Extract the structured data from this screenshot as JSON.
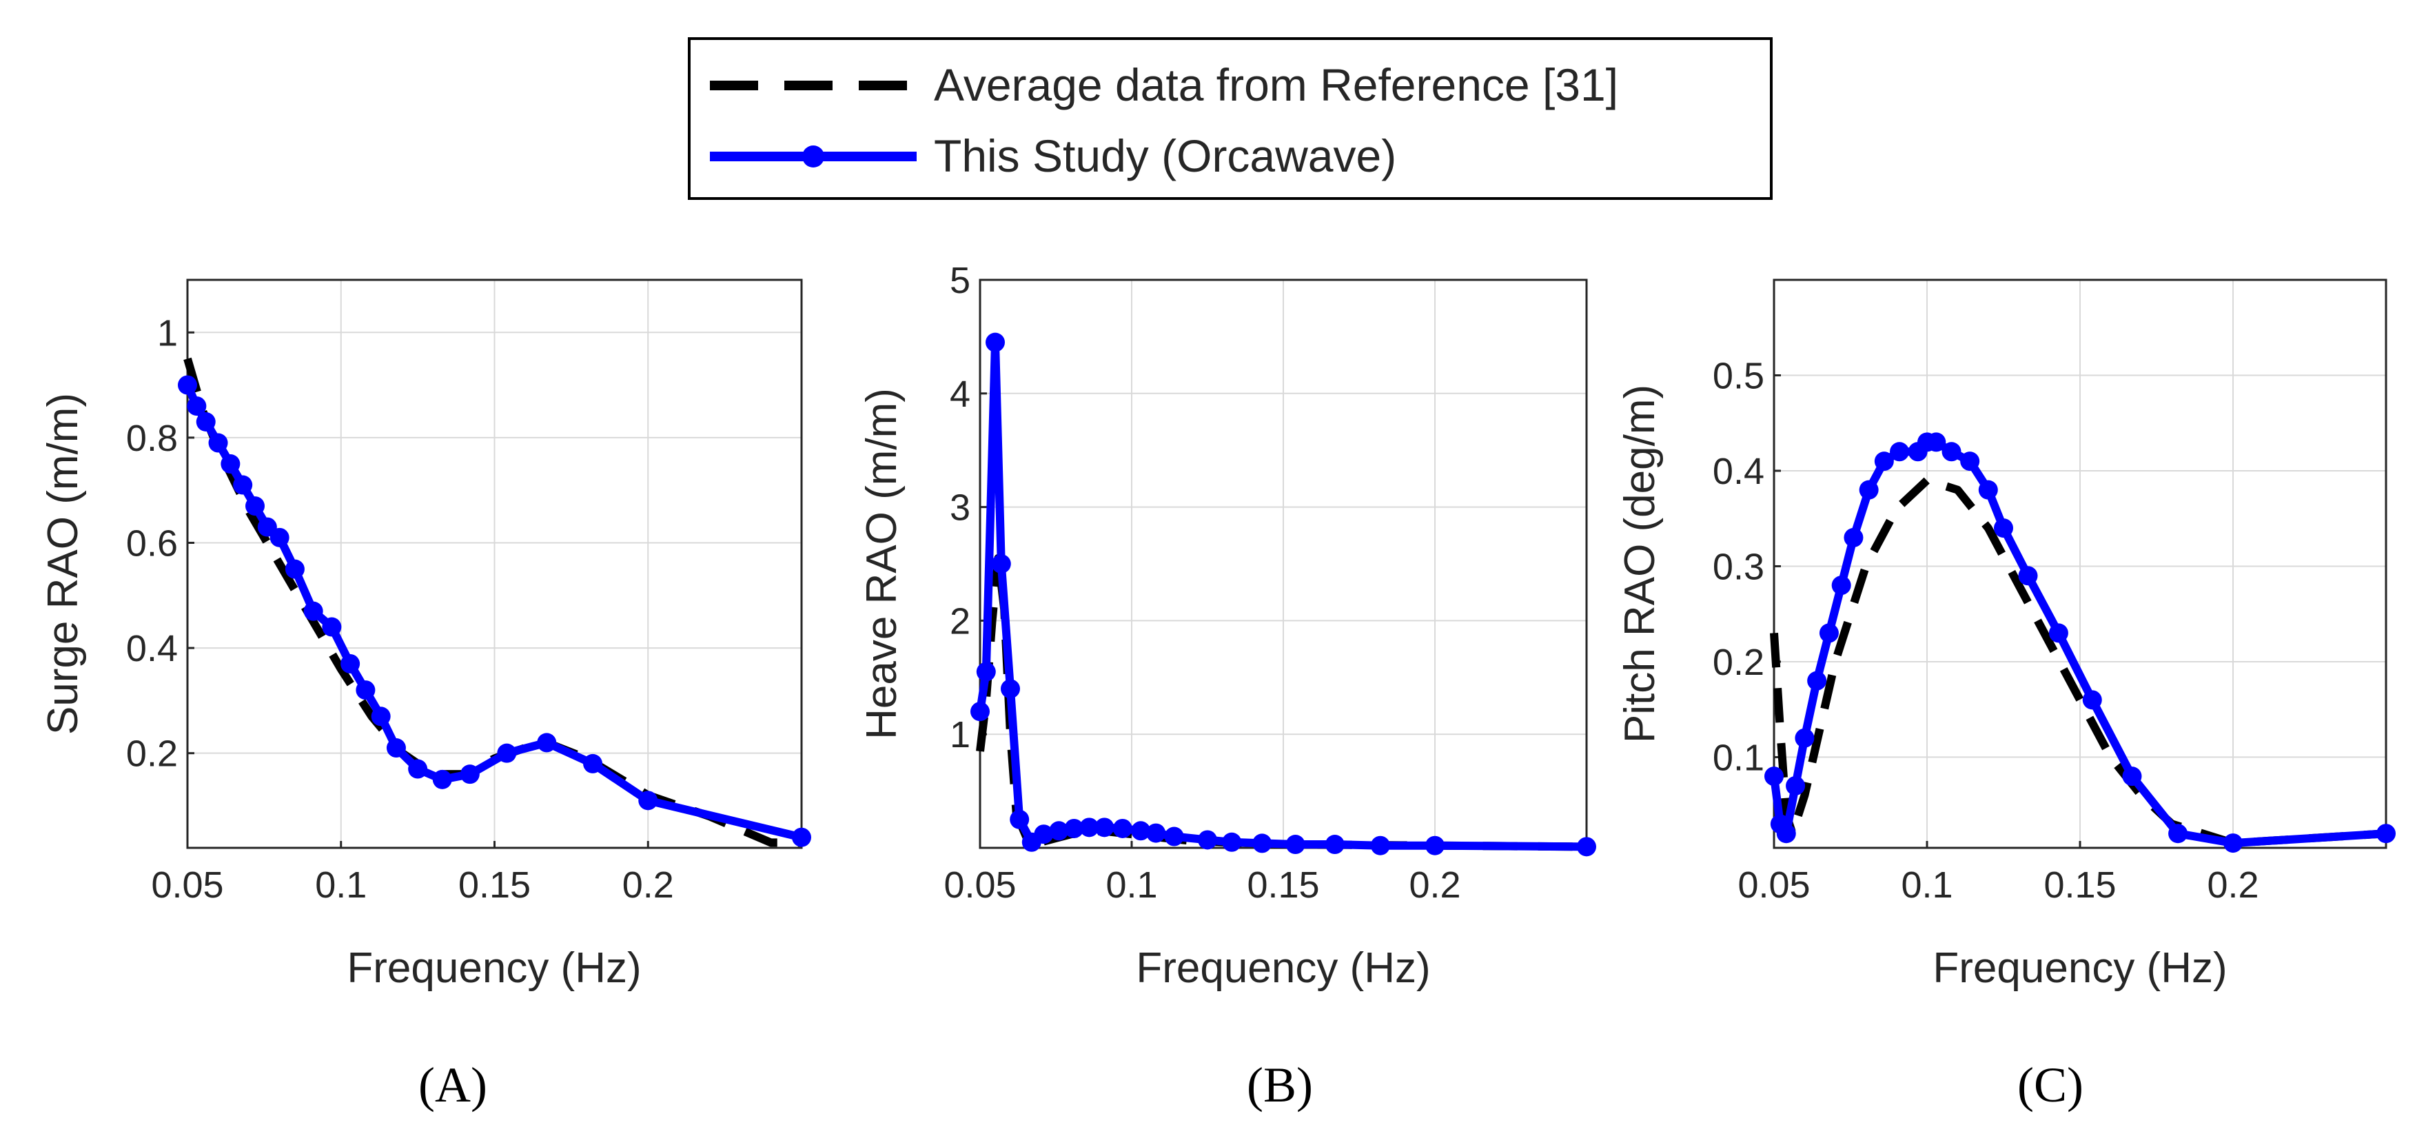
{
  "legend": {
    "entries": [
      {
        "label": "Average data from Reference [31]",
        "style": "dashed",
        "color": "#000000"
      },
      {
        "label": "This Study (Orcawave)",
        "style": "line-marker",
        "color": "#0000ff"
      }
    ]
  },
  "chart_data": [
    {
      "type": "line",
      "panel_label": "(A)",
      "title": "",
      "xlabel": "Frequency (Hz)",
      "ylabel": "Surge RAO (m/m)",
      "xlim": [
        0.05,
        0.25
      ],
      "ylim": [
        0.02,
        1.1
      ],
      "xticks": [
        0.05,
        0.1,
        0.15,
        0.2
      ],
      "xtick_labels": [
        "0.05",
        "0.1",
        "0.15",
        "0.2"
      ],
      "yticks": [
        0.2,
        0.4,
        0.6,
        0.8,
        1.0
      ],
      "ytick_labels": [
        "0.2",
        "0.4",
        "0.6",
        "0.8",
        "1"
      ],
      "grid": true,
      "series": [
        {
          "name": "Average data from Reference [31]",
          "x": [
            0.05,
            0.055,
            0.06,
            0.07,
            0.08,
            0.09,
            0.1,
            0.11,
            0.12,
            0.13,
            0.14,
            0.15,
            0.16,
            0.167,
            0.18,
            0.2,
            0.22,
            0.24,
            0.25
          ],
          "y": [
            0.95,
            0.85,
            0.78,
            0.66,
            0.56,
            0.46,
            0.36,
            0.27,
            0.2,
            0.16,
            0.16,
            0.19,
            0.21,
            0.22,
            0.19,
            0.12,
            0.08,
            0.03,
            0.03
          ]
        },
        {
          "name": "This Study (Orcawave)",
          "x": [
            0.05,
            0.053,
            0.056,
            0.06,
            0.064,
            0.068,
            0.072,
            0.076,
            0.08,
            0.085,
            0.091,
            0.097,
            0.103,
            0.108,
            0.113,
            0.118,
            0.125,
            0.133,
            0.142,
            0.154,
            0.167,
            0.182,
            0.2,
            0.25
          ],
          "y": [
            0.9,
            0.86,
            0.83,
            0.79,
            0.75,
            0.71,
            0.67,
            0.63,
            0.61,
            0.55,
            0.47,
            0.44,
            0.37,
            0.32,
            0.27,
            0.21,
            0.17,
            0.15,
            0.16,
            0.2,
            0.22,
            0.18,
            0.11,
            0.04
          ]
        }
      ]
    },
    {
      "type": "line",
      "panel_label": "(B)",
      "title": "",
      "xlabel": "Frequency (Hz)",
      "ylabel": "Heave RAO (m/m)",
      "xlim": [
        0.05,
        0.25
      ],
      "ylim": [
        0,
        5
      ],
      "xticks": [
        0.05,
        0.1,
        0.15,
        0.2
      ],
      "xtick_labels": [
        "0.05",
        "0.1",
        "0.15",
        "0.2"
      ],
      "yticks": [
        1,
        2,
        3,
        4,
        5
      ],
      "ytick_labels": [
        "1",
        "2",
        "3",
        "4",
        "5"
      ],
      "grid": true,
      "series": [
        {
          "name": "Average data from Reference [31]",
          "x": [
            0.05,
            0.052,
            0.054,
            0.056,
            0.058,
            0.06,
            0.062,
            0.066,
            0.07,
            0.08,
            0.09,
            0.1,
            0.12,
            0.15,
            0.2,
            0.25
          ],
          "y": [
            0.85,
            1.3,
            2.0,
            2.55,
            2.1,
            1.0,
            0.3,
            0.05,
            0.05,
            0.12,
            0.15,
            0.12,
            0.06,
            0.03,
            0.02,
            0.01
          ]
        },
        {
          "name": "This Study (Orcawave)",
          "x": [
            0.05,
            0.052,
            0.055,
            0.057,
            0.06,
            0.063,
            0.067,
            0.071,
            0.076,
            0.081,
            0.086,
            0.091,
            0.097,
            0.103,
            0.108,
            0.114,
            0.125,
            0.133,
            0.143,
            0.154,
            0.167,
            0.182,
            0.2,
            0.25
          ],
          "y": [
            1.2,
            1.55,
            4.45,
            2.5,
            1.4,
            0.25,
            0.05,
            0.12,
            0.15,
            0.17,
            0.18,
            0.18,
            0.17,
            0.15,
            0.13,
            0.1,
            0.07,
            0.05,
            0.04,
            0.03,
            0.03,
            0.02,
            0.02,
            0.01
          ]
        }
      ]
    },
    {
      "type": "line",
      "panel_label": "(C)",
      "title": "",
      "xlabel": "Frequency (Hz)",
      "ylabel": "Pitch RAO (deg/m)",
      "xlim": [
        0.05,
        0.25
      ],
      "ylim": [
        0.005,
        0.6
      ],
      "xticks": [
        0.05,
        0.1,
        0.15,
        0.2
      ],
      "xtick_labels": [
        "0.05",
        "0.1",
        "0.15",
        "0.2"
      ],
      "yticks": [
        0.1,
        0.2,
        0.3,
        0.4,
        0.5
      ],
      "ytick_labels": [
        "0.1",
        "0.2",
        "0.3",
        "0.4",
        "0.5"
      ],
      "grid": true,
      "series": [
        {
          "name": "Average data from Reference [31]",
          "x": [
            0.05,
            0.052,
            0.054,
            0.056,
            0.06,
            0.07,
            0.08,
            0.09,
            0.1,
            0.11,
            0.12,
            0.13,
            0.14,
            0.15,
            0.16,
            0.17,
            0.18,
            0.2,
            0.25
          ],
          "y": [
            0.23,
            0.13,
            0.04,
            0.02,
            0.06,
            0.2,
            0.3,
            0.36,
            0.39,
            0.38,
            0.34,
            0.28,
            0.22,
            0.16,
            0.1,
            0.06,
            0.03,
            0.01,
            0.02
          ]
        },
        {
          "name": "This Study (Orcawave)",
          "x": [
            0.05,
            0.052,
            0.054,
            0.057,
            0.06,
            0.064,
            0.068,
            0.072,
            0.076,
            0.081,
            0.086,
            0.091,
            0.097,
            0.1,
            0.103,
            0.108,
            0.114,
            0.12,
            0.125,
            0.133,
            0.143,
            0.154,
            0.167,
            0.182,
            0.2,
            0.25
          ],
          "y": [
            0.08,
            0.03,
            0.02,
            0.07,
            0.12,
            0.18,
            0.23,
            0.28,
            0.33,
            0.38,
            0.41,
            0.42,
            0.42,
            0.43,
            0.43,
            0.42,
            0.41,
            0.38,
            0.34,
            0.29,
            0.23,
            0.16,
            0.08,
            0.02,
            0.01,
            0.02
          ]
        }
      ]
    }
  ]
}
